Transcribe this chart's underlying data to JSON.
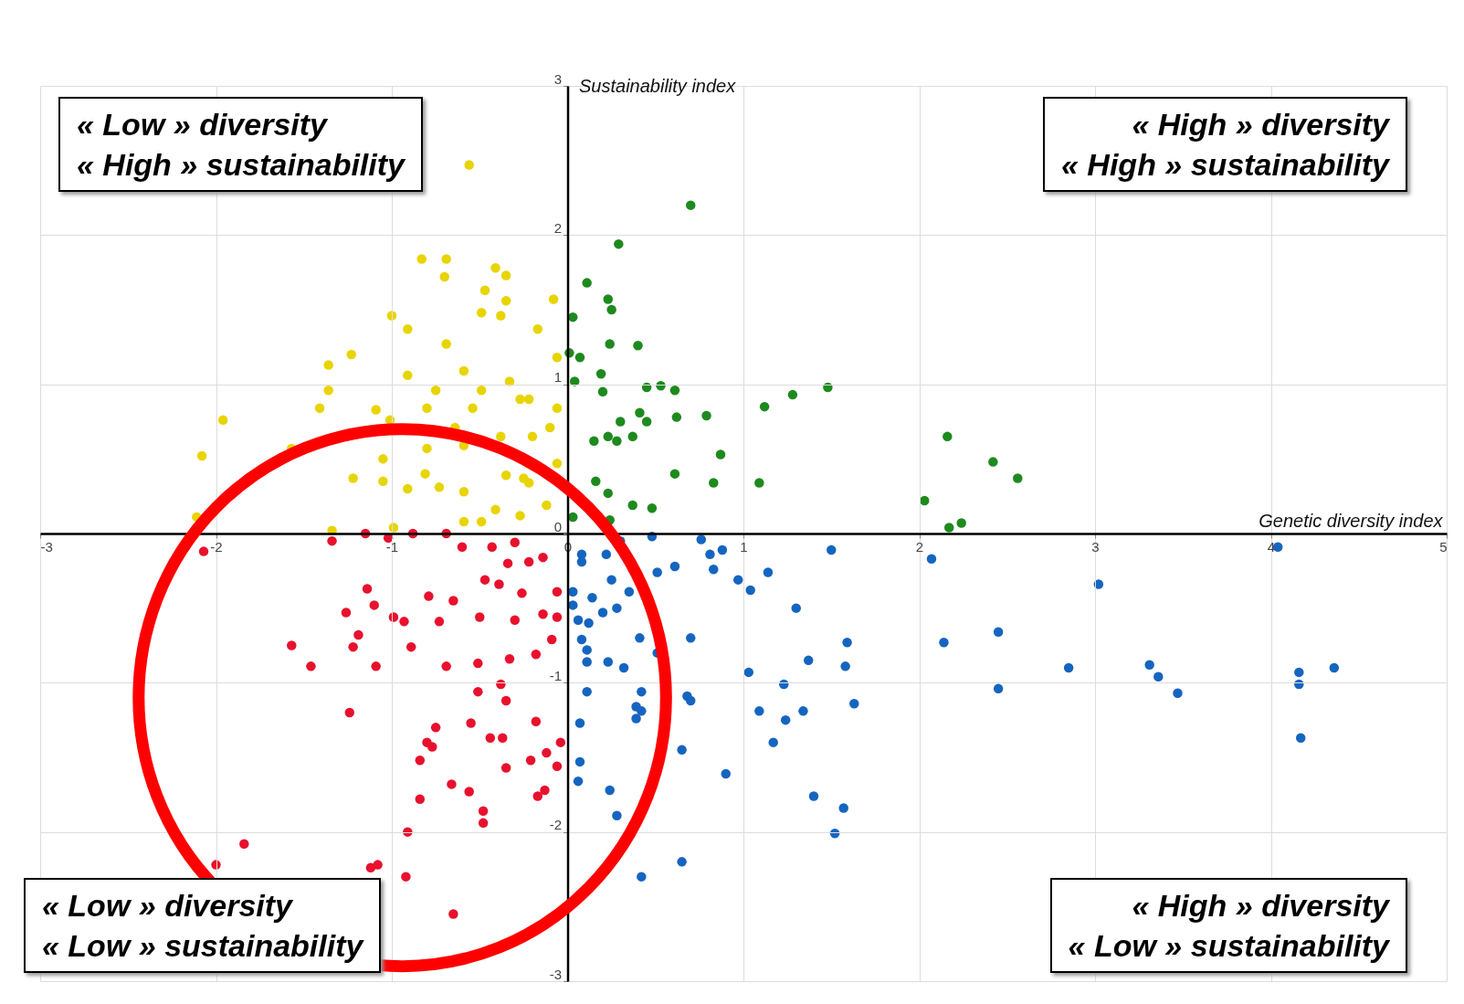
{
  "chart_data": {
    "type": "scatter",
    "xlabel": "Genetic diversity index",
    "ylabel": "Sustainability index",
    "xlim": [
      -3,
      5
    ],
    "ylim": [
      -3,
      3
    ],
    "xticks": [
      -3,
      -2,
      -1,
      0,
      1,
      2,
      3,
      4,
      5
    ],
    "yticks": [
      -3,
      -2,
      -1,
      0,
      1,
      2,
      3
    ],
    "grid": true,
    "marker": "circle",
    "annotations": [
      "« Low » diversity\n« High » sustainability",
      "« High » diversity\n« High » sustainability",
      "« Low » diversity\n« Low » sustainability",
      "« High » diversity\n« Low » sustainability"
    ],
    "series": [
      {
        "color": "#e8d400",
        "x": [
          -0.56,
          -0.83,
          -0.69,
          -0.7,
          -0.41,
          -0.35,
          -0.47,
          -0.35,
          -0.08,
          -1.0,
          -0.91,
          -0.49,
          -0.38,
          -0.17,
          -0.69,
          -1.36,
          -1.23,
          -1.36,
          -1.41,
          -1.96,
          -2.08,
          -2.11,
          -1.09,
          -1.01,
          -0.8,
          -0.59,
          -0.49,
          -0.33,
          -0.22,
          -0.06,
          -0.06,
          -0.1,
          -0.38,
          -0.59,
          -0.64,
          -0.8,
          -1.05,
          -1.22,
          -1.05,
          -0.91,
          -0.73,
          -0.81,
          -0.59,
          -0.35,
          -0.22,
          -0.06,
          -0.12,
          -0.27,
          -0.41,
          -0.59,
          -0.49,
          -0.99,
          -1.34,
          -0.25,
          -1.57,
          -0.91,
          -0.75,
          -0.27,
          -0.54,
          -0.2
        ],
        "values": [
          2.47,
          1.84,
          1.84,
          1.72,
          1.78,
          1.73,
          1.63,
          1.56,
          1.57,
          1.46,
          1.37,
          1.48,
          1.46,
          1.37,
          1.27,
          1.13,
          1.2,
          0.96,
          0.84,
          0.76,
          0.52,
          0.11,
          0.83,
          0.76,
          0.84,
          1.09,
          0.96,
          1.02,
          0.9,
          0.84,
          1.18,
          0.71,
          0.65,
          0.59,
          0.71,
          0.57,
          0.5,
          0.37,
          0.35,
          0.3,
          0.31,
          0.4,
          0.28,
          0.39,
          0.34,
          0.47,
          0.19,
          0.12,
          0.16,
          0.08,
          0.08,
          0.04,
          0.02,
          0.37,
          0.57,
          1.06,
          0.96,
          0.9,
          0.84,
          0.65
        ]
      },
      {
        "color": "#1e8a1e",
        "x": [
          0.7,
          0.29,
          0.11,
          0.23,
          0.25,
          0.03,
          0.01,
          0.07,
          0.04,
          0.24,
          0.4,
          0.19,
          0.2,
          0.45,
          0.53,
          0.61,
          0.41,
          0.45,
          0.3,
          0.23,
          0.15,
          0.28,
          0.37,
          0.62,
          0.79,
          1.12,
          1.28,
          1.48,
          0.87,
          0.61,
          0.83,
          1.09,
          0.16,
          0.23,
          0.37,
          0.48,
          0.24,
          2.03,
          2.17,
          2.24,
          2.16,
          2.42,
          2.56,
          0.03
        ],
        "values": [
          2.2,
          1.94,
          1.68,
          1.57,
          1.5,
          1.45,
          1.21,
          1.18,
          1.02,
          1.27,
          1.26,
          1.07,
          0.95,
          0.98,
          0.99,
          0.96,
          0.81,
          0.75,
          0.75,
          0.65,
          0.62,
          0.62,
          0.65,
          0.78,
          0.79,
          0.85,
          0.93,
          0.98,
          0.53,
          0.4,
          0.34,
          0.34,
          0.35,
          0.27,
          0.19,
          0.17,
          0.09,
          0.22,
          0.04,
          0.07,
          0.65,
          0.48,
          0.37,
          0.11
        ]
      },
      {
        "color": "#e8112d",
        "x": [
          -2.07,
          -1.34,
          -1.15,
          -1.02,
          -0.88,
          -0.69,
          -0.6,
          -0.43,
          -0.3,
          -0.34,
          -0.22,
          -0.14,
          -0.47,
          -0.39,
          -0.26,
          -0.06,
          -1.14,
          -1.26,
          -1.1,
          -0.79,
          -0.65,
          -0.99,
          -0.93,
          -1.19,
          -1.22,
          -1.57,
          -1.46,
          -1.09,
          -0.89,
          -0.73,
          -0.5,
          -0.3,
          -0.14,
          -0.06,
          -0.69,
          -0.51,
          -0.33,
          -0.18,
          -0.09,
          -0.38,
          -0.51,
          -0.35,
          -1.24,
          -0.75,
          -0.55,
          -0.44,
          -0.37,
          -0.18,
          -0.8,
          -0.77,
          -0.84,
          -0.35,
          -0.21,
          -0.12,
          -0.04,
          -0.06,
          -0.66,
          -0.56,
          -0.48,
          -0.48,
          -0.17,
          -0.13,
          -0.84,
          -0.91,
          -1.84,
          -2.0,
          -1.12,
          -1.08,
          -0.92,
          -0.65
        ],
        "values": [
          -0.12,
          -0.05,
          0.0,
          -0.03,
          0.0,
          0.0,
          -0.09,
          -0.09,
          -0.06,
          -0.2,
          -0.19,
          -0.16,
          -0.31,
          -0.34,
          -0.4,
          -0.39,
          -0.37,
          -0.53,
          -0.48,
          -0.42,
          -0.45,
          -0.56,
          -0.59,
          -0.68,
          -0.76,
          -0.75,
          -0.89,
          -0.89,
          -0.76,
          -0.59,
          -0.56,
          -0.58,
          -0.54,
          -0.56,
          -0.89,
          -0.87,
          -0.84,
          -0.81,
          -0.71,
          -1.01,
          -1.06,
          -1.12,
          -1.2,
          -1.3,
          -1.27,
          -1.37,
          -1.37,
          -1.26,
          -1.4,
          -1.43,
          -1.52,
          -1.57,
          -1.52,
          -1.47,
          -1.4,
          -1.56,
          -1.68,
          -1.73,
          -1.86,
          -1.94,
          -1.76,
          -1.72,
          -1.78,
          -2.0,
          -2.08,
          -2.22,
          -2.24,
          -2.22,
          -2.3,
          -2.55
        ]
      },
      {
        "color": "#1565c0",
        "x": [
          4.04,
          3.02,
          2.07,
          2.14,
          2.45,
          2.45,
          2.85,
          3.31,
          3.36,
          3.47,
          4.16,
          4.16,
          4.36,
          4.17,
          1.5,
          1.59,
          1.58,
          1.37,
          1.3,
          1.63,
          1.23,
          1.34,
          1.24,
          1.17,
          1.09,
          1.03,
          1.4,
          1.57,
          1.52,
          0.9,
          0.65,
          0.65,
          0.42,
          0.24,
          0.28,
          0.06,
          0.07,
          0.07,
          0.39,
          0.39,
          0.42,
          0.42,
          0.11,
          0.7,
          0.68,
          0.7,
          0.41,
          0.32,
          0.23,
          0.11,
          0.11,
          0.08,
          0.06,
          0.12,
          0.2,
          0.28,
          0.35,
          0.25,
          0.14,
          0.03,
          0.03,
          0.08,
          0.08,
          0.22,
          0.3,
          0.48,
          0.51,
          0.61,
          0.76,
          0.81,
          0.88,
          0.83,
          0.97,
          1.04,
          1.14,
          0.51
        ],
        "values": [
          -0.09,
          -0.34,
          -0.17,
          -0.73,
          -0.66,
          -1.04,
          -0.9,
          -0.88,
          -0.96,
          -1.07,
          -0.93,
          -1.01,
          -0.9,
          -1.37,
          -0.11,
          -0.73,
          -0.89,
          -0.85,
          -0.5,
          -1.14,
          -1.01,
          -1.19,
          -1.25,
          -1.4,
          -1.19,
          -0.93,
          -1.76,
          -1.84,
          -2.01,
          -1.61,
          -1.45,
          -2.2,
          -2.3,
          -1.72,
          -1.89,
          -1.66,
          -1.53,
          -1.27,
          -1.24,
          -1.16,
          -1.19,
          -1.06,
          -1.06,
          -0.7,
          -1.09,
          -1.12,
          -0.7,
          -0.9,
          -0.86,
          -0.86,
          -0.78,
          -0.71,
          -0.58,
          -0.6,
          -0.53,
          -0.5,
          -0.39,
          -0.31,
          -0.43,
          -0.48,
          -0.39,
          -0.14,
          -0.19,
          -0.14,
          -0.05,
          -0.02,
          -0.26,
          -0.22,
          -0.04,
          -0.14,
          -0.11,
          -0.24,
          -0.31,
          -0.38,
          -0.26,
          -0.8
        ]
      }
    ]
  }
}
